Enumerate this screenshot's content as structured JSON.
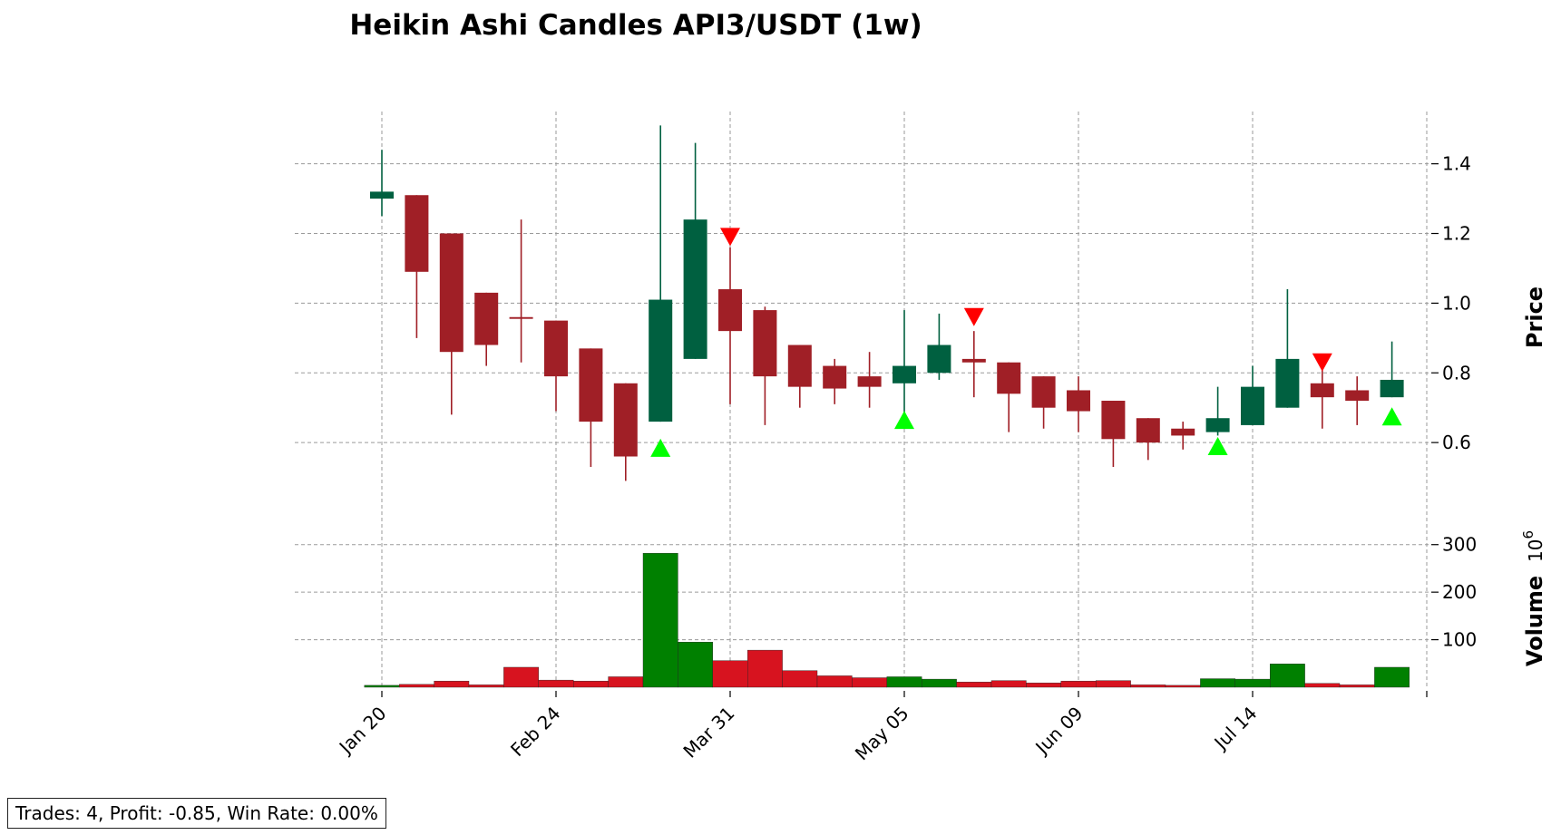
{
  "chart_data": {
    "type": "candlestick",
    "title": "Heikin Ashi Candles API3/USDT (1w)",
    "price_label": "Price",
    "volume_label": "Volume",
    "volume_exponent_base": "10",
    "volume_exponent": "6",
    "price_ylim": [
      0.4,
      1.55
    ],
    "price_ticks": [
      "0.6",
      "0.8",
      "1.0",
      "1.2",
      "1.4"
    ],
    "price_tick_values": [
      0.6,
      0.8,
      1.0,
      1.2,
      1.4
    ],
    "volume_ticks": [
      "100",
      "200",
      "300"
    ],
    "volume_tick_values": [
      100,
      200,
      300
    ],
    "volume_ylim": [
      0,
      330
    ],
    "x_tick_labels": [
      "Jan 20",
      "Feb 24",
      "Mar 31",
      "May 05",
      "Jun 09",
      "Jul 14"
    ],
    "x_tick_indices": [
      0,
      5,
      10,
      15,
      20,
      25
    ],
    "bull_color": "#006040",
    "bear_color": "#a01f26",
    "vol_up_color": "#008000",
    "vol_down_color": "#d7131f",
    "buy_marker_color": "#00ff00",
    "sell_marker_color": "#ff0000",
    "candles": [
      {
        "o": 1.3,
        "h": 1.44,
        "l": 1.25,
        "c": 1.32
      },
      {
        "o": 1.31,
        "h": 1.31,
        "l": 0.9,
        "c": 1.09
      },
      {
        "o": 1.2,
        "h": 1.2,
        "l": 0.68,
        "c": 0.86
      },
      {
        "o": 1.03,
        "h": 1.03,
        "l": 0.82,
        "c": 0.88
      },
      {
        "o": 0.96,
        "h": 1.24,
        "l": 0.83,
        "c": 0.955
      },
      {
        "o": 0.95,
        "h": 0.95,
        "l": 0.69,
        "c": 0.79
      },
      {
        "o": 0.87,
        "h": 0.87,
        "l": 0.53,
        "c": 0.66
      },
      {
        "o": 0.77,
        "h": 0.77,
        "l": 0.49,
        "c": 0.56
      },
      {
        "o": 0.66,
        "h": 1.51,
        "l": 0.66,
        "c": 1.01
      },
      {
        "o": 0.84,
        "h": 1.46,
        "l": 0.84,
        "c": 1.24
      },
      {
        "o": 1.04,
        "h": 1.16,
        "l": 0.71,
        "c": 0.92
      },
      {
        "o": 0.98,
        "h": 0.99,
        "l": 0.65,
        "c": 0.79
      },
      {
        "o": 0.88,
        "h": 0.88,
        "l": 0.7,
        "c": 0.76
      },
      {
        "o": 0.82,
        "h": 0.84,
        "l": 0.71,
        "c": 0.755
      },
      {
        "o": 0.79,
        "h": 0.86,
        "l": 0.7,
        "c": 0.76
      },
      {
        "o": 0.77,
        "h": 0.98,
        "l": 0.66,
        "c": 0.82
      },
      {
        "o": 0.8,
        "h": 0.97,
        "l": 0.78,
        "c": 0.88
      },
      {
        "o": 0.84,
        "h": 0.92,
        "l": 0.73,
        "c": 0.83
      },
      {
        "o": 0.83,
        "h": 0.83,
        "l": 0.63,
        "c": 0.74
      },
      {
        "o": 0.79,
        "h": 0.79,
        "l": 0.64,
        "c": 0.7
      },
      {
        "o": 0.75,
        "h": 0.79,
        "l": 0.63,
        "c": 0.69
      },
      {
        "o": 0.72,
        "h": 0.72,
        "l": 0.53,
        "c": 0.61
      },
      {
        "o": 0.67,
        "h": 0.67,
        "l": 0.55,
        "c": 0.6
      },
      {
        "o": 0.64,
        "h": 0.66,
        "l": 0.58,
        "c": 0.62
      },
      {
        "o": 0.63,
        "h": 0.76,
        "l": 0.62,
        "c": 0.67
      },
      {
        "o": 0.65,
        "h": 0.82,
        "l": 0.65,
        "c": 0.76
      },
      {
        "o": 0.7,
        "h": 1.04,
        "l": 0.7,
        "c": 0.84
      },
      {
        "o": 0.77,
        "h": 0.81,
        "l": 0.64,
        "c": 0.73
      },
      {
        "o": 0.75,
        "h": 0.79,
        "l": 0.65,
        "c": 0.72
      },
      {
        "o": 0.73,
        "h": 0.89,
        "l": 0.73,
        "c": 0.78
      }
    ],
    "volumes": [
      4,
      6,
      13,
      5,
      42,
      15,
      13,
      22,
      282,
      95,
      56,
      78,
      35,
      24,
      20,
      22,
      17,
      11,
      14,
      9,
      13,
      14,
      5,
      4,
      18,
      17,
      49,
      8,
      5,
      42
    ],
    "buy_signals": [
      {
        "index": 8,
        "price": 0.585
      },
      {
        "index": 15,
        "price": 0.665
      },
      {
        "index": 24,
        "price": 0.59
      },
      {
        "index": 29,
        "price": 0.675
      }
    ],
    "sell_signals": [
      {
        "index": 10,
        "price": 1.19
      },
      {
        "index": 17,
        "price": 0.96
      },
      {
        "index": 27,
        "price": 0.83
      }
    ]
  },
  "stats_text": "Trades: 4, Profit: -0.85, Win Rate: 0.00%"
}
